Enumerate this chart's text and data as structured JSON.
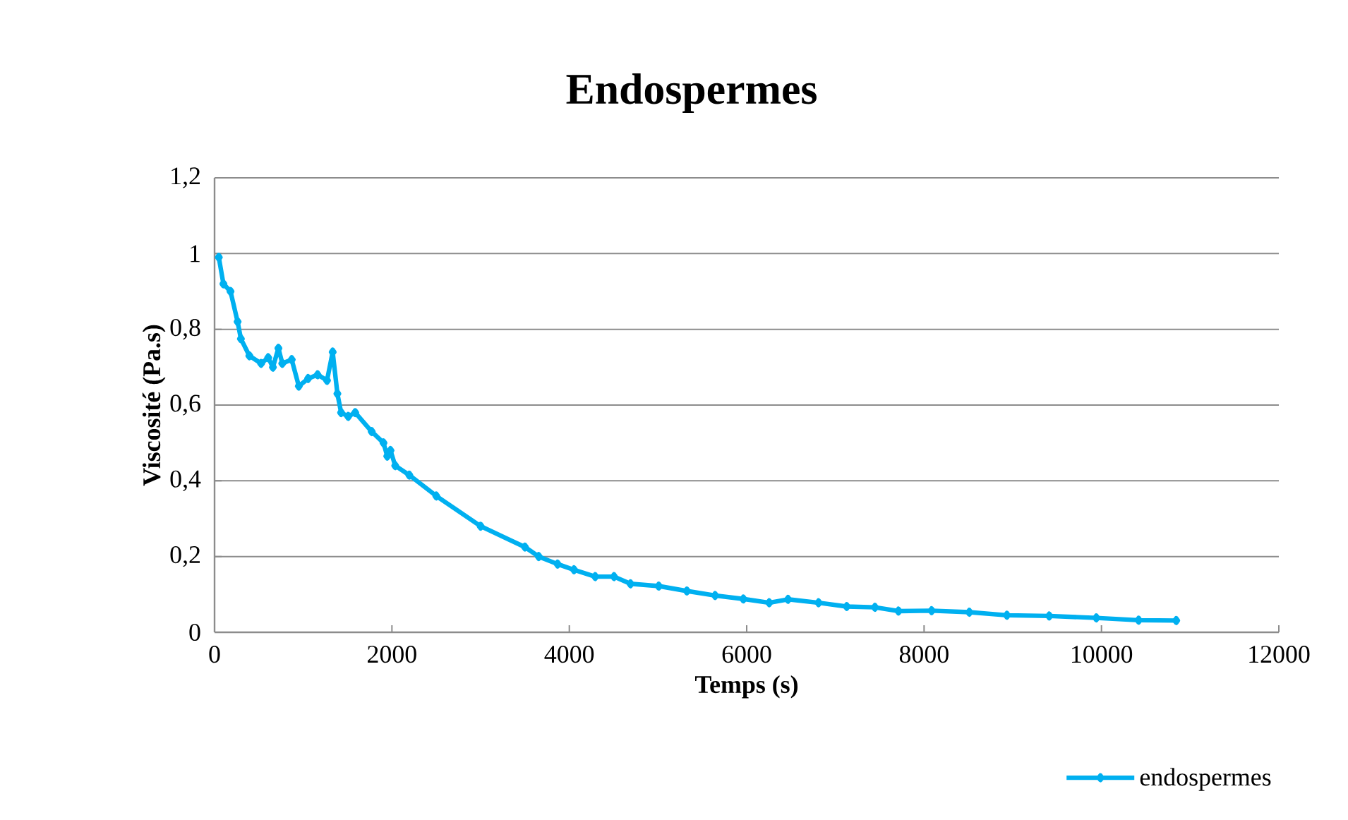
{
  "chart_data": {
    "type": "line",
    "title": "Endospermes",
    "xlabel": "Temps (s)",
    "ylabel": "Viscosité (Pa.s)",
    "xlim": [
      0,
      12000
    ],
    "xticks": [
      0,
      2000,
      4000,
      6000,
      8000,
      10000,
      12000
    ],
    "ylim": [
      0,
      1.2
    ],
    "yticks": [
      0,
      {
        "value": 0.2,
        "label": "0,2"
      },
      {
        "value": 0.4,
        "label": "0,4"
      },
      {
        "value": 0.6,
        "label": "0,6"
      },
      {
        "value": 0.8,
        "label": "0,8"
      },
      1,
      {
        "value": 1.2,
        "label": "1,2"
      }
    ],
    "grid": "y",
    "legend": "bottom right",
    "marker": "diamond",
    "line_style": "solid",
    "series": [
      {
        "name": "endospermes",
        "color": "#00b0f0",
        "x": [
          48,
          100,
          180,
          260,
          297,
          393,
          525,
          605,
          658,
          720,
          764,
          870,
          950,
          1055,
          1162,
          1268,
          1332,
          1385,
          1427,
          1507,
          1586,
          1772,
          1905,
          1947,
          1984,
          2037,
          2196,
          2500,
          3000,
          3500,
          3655,
          3868,
          4053,
          4292,
          4504,
          4690,
          5008,
          5326,
          5644,
          5962,
          6254,
          6466,
          6810,
          7128,
          7446,
          7711,
          8085,
          8510,
          8934,
          9411,
          9942,
          10419,
          10843
        ],
        "values": [
          0.99,
          0.92,
          0.9,
          0.82,
          0.775,
          0.73,
          0.71,
          0.725,
          0.7,
          0.75,
          0.71,
          0.72,
          0.65,
          0.67,
          0.68,
          0.665,
          0.74,
          0.63,
          0.58,
          0.57,
          0.58,
          0.53,
          0.5,
          0.465,
          0.48,
          0.44,
          0.415,
          0.36,
          0.28,
          0.225,
          0.2,
          0.18,
          0.165,
          0.147,
          0.147,
          0.128,
          0.122,
          0.109,
          0.097,
          0.088,
          0.078,
          0.087,
          0.078,
          0.068,
          0.066,
          0.056,
          0.057,
          0.053,
          0.045,
          0.043,
          0.038,
          0.032,
          0.031
        ]
      }
    ]
  }
}
